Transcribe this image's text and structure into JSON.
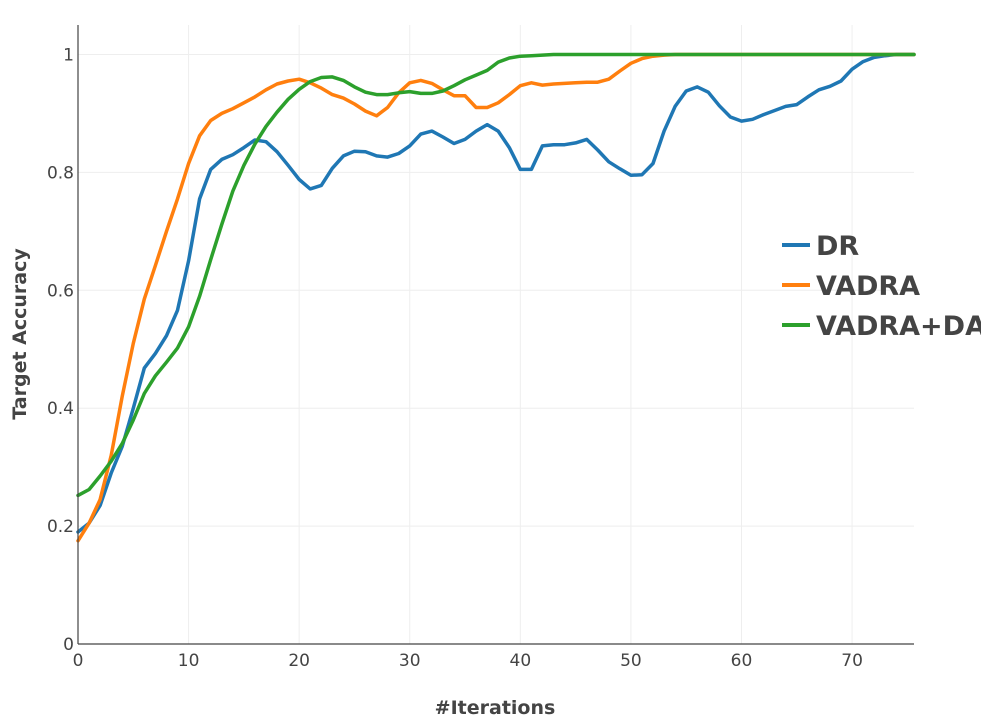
{
  "chart_data": {
    "type": "line",
    "title": "",
    "xlabel": "#Iterations",
    "ylabel": "Target Accuracy",
    "xlim": [
      0,
      75.6
    ],
    "ylim": [
      0,
      1.05
    ],
    "x_ticks": [
      0,
      10,
      20,
      30,
      40,
      50,
      60,
      70
    ],
    "y_ticks": [
      0,
      0.2,
      0.4,
      0.6,
      0.8,
      1
    ],
    "x_tick_labels": [
      "0",
      "10",
      "20",
      "30",
      "40",
      "50",
      "60",
      "70"
    ],
    "y_tick_labels": [
      "0",
      "0.2",
      "0.4",
      "0.6",
      "0.8",
      "1"
    ],
    "grid": true,
    "legend_position": "right",
    "series": [
      {
        "name": "DR",
        "color": "#1f77b4",
        "points": [
          [
            0,
            0.19
          ],
          [
            1,
            0.205
          ],
          [
            2,
            0.235
          ],
          [
            3,
            0.29
          ],
          [
            4,
            0.335
          ],
          [
            5,
            0.4
          ],
          [
            6,
            0.468
          ],
          [
            7,
            0.493
          ],
          [
            8,
            0.523
          ],
          [
            9,
            0.566
          ],
          [
            10,
            0.65
          ],
          [
            11,
            0.755
          ],
          [
            12,
            0.805
          ],
          [
            13,
            0.822
          ],
          [
            14,
            0.83
          ],
          [
            15,
            0.842
          ],
          [
            16,
            0.855
          ],
          [
            17,
            0.852
          ],
          [
            18,
            0.835
          ],
          [
            19,
            0.812
          ],
          [
            20,
            0.788
          ],
          [
            21,
            0.772
          ],
          [
            22,
            0.778
          ],
          [
            23,
            0.807
          ],
          [
            24,
            0.828
          ],
          [
            25,
            0.836
          ],
          [
            26,
            0.835
          ],
          [
            27,
            0.828
          ],
          [
            28,
            0.826
          ],
          [
            29,
            0.832
          ],
          [
            30,
            0.845
          ],
          [
            31,
            0.865
          ],
          [
            32,
            0.87
          ],
          [
            33,
            0.86
          ],
          [
            34,
            0.849
          ],
          [
            35,
            0.856
          ],
          [
            36,
            0.87
          ],
          [
            37,
            0.881
          ],
          [
            38,
            0.87
          ],
          [
            39,
            0.842
          ],
          [
            40,
            0.805
          ],
          [
            41,
            0.805
          ],
          [
            42,
            0.845
          ],
          [
            43,
            0.847
          ],
          [
            44,
            0.847
          ],
          [
            45,
            0.85
          ],
          [
            46,
            0.856
          ],
          [
            47,
            0.838
          ],
          [
            48,
            0.818
          ],
          [
            49,
            0.806
          ],
          [
            50,
            0.795
          ],
          [
            51,
            0.796
          ],
          [
            52,
            0.815
          ],
          [
            53,
            0.87
          ],
          [
            54,
            0.912
          ],
          [
            55,
            0.938
          ],
          [
            56,
            0.945
          ],
          [
            57,
            0.936
          ],
          [
            58,
            0.913
          ],
          [
            59,
            0.894
          ],
          [
            60,
            0.887
          ],
          [
            61,
            0.89
          ],
          [
            62,
            0.898
          ],
          [
            63,
            0.905
          ],
          [
            64,
            0.912
          ],
          [
            65,
            0.915
          ],
          [
            66,
            0.928
          ],
          [
            67,
            0.94
          ],
          [
            68,
            0.946
          ],
          [
            69,
            0.955
          ],
          [
            70,
            0.975
          ],
          [
            71,
            0.988
          ],
          [
            72,
            0.995
          ],
          [
            73,
            0.998
          ],
          [
            74,
            1.0
          ],
          [
            75.6,
            1.0
          ]
        ]
      },
      {
        "name": "VADRA",
        "color": "#ff7f0e",
        "points": [
          [
            0,
            0.175
          ],
          [
            1,
            0.205
          ],
          [
            2,
            0.245
          ],
          [
            3,
            0.32
          ],
          [
            4,
            0.42
          ],
          [
            5,
            0.51
          ],
          [
            6,
            0.585
          ],
          [
            7,
            0.642
          ],
          [
            8,
            0.7
          ],
          [
            9,
            0.755
          ],
          [
            10,
            0.815
          ],
          [
            11,
            0.862
          ],
          [
            12,
            0.888
          ],
          [
            13,
            0.9
          ],
          [
            14,
            0.908
          ],
          [
            15,
            0.918
          ],
          [
            16,
            0.928
          ],
          [
            17,
            0.94
          ],
          [
            18,
            0.95
          ],
          [
            19,
            0.955
          ],
          [
            20,
            0.958
          ],
          [
            21,
            0.952
          ],
          [
            22,
            0.943
          ],
          [
            23,
            0.932
          ],
          [
            24,
            0.926
          ],
          [
            25,
            0.916
          ],
          [
            26,
            0.904
          ],
          [
            27,
            0.896
          ],
          [
            28,
            0.91
          ],
          [
            29,
            0.935
          ],
          [
            30,
            0.952
          ],
          [
            31,
            0.956
          ],
          [
            32,
            0.951
          ],
          [
            33,
            0.94
          ],
          [
            34,
            0.93
          ],
          [
            35,
            0.93
          ],
          [
            36,
            0.91
          ],
          [
            37,
            0.91
          ],
          [
            38,
            0.918
          ],
          [
            39,
            0.932
          ],
          [
            40,
            0.947
          ],
          [
            41,
            0.952
          ],
          [
            42,
            0.948
          ],
          [
            43,
            0.95
          ],
          [
            44,
            0.951
          ],
          [
            45,
            0.952
          ],
          [
            46,
            0.953
          ],
          [
            47,
            0.953
          ],
          [
            48,
            0.958
          ],
          [
            49,
            0.972
          ],
          [
            50,
            0.985
          ],
          [
            51,
            0.993
          ],
          [
            52,
            0.997
          ],
          [
            53,
            0.999
          ],
          [
            54,
            1.0
          ],
          [
            55,
            1.0
          ],
          [
            75.6,
            1.0
          ]
        ]
      },
      {
        "name": "VADRA+DA",
        "color": "#2ca02c",
        "points": [
          [
            0,
            0.252
          ],
          [
            1,
            0.262
          ],
          [
            2,
            0.285
          ],
          [
            3,
            0.31
          ],
          [
            4,
            0.34
          ],
          [
            5,
            0.38
          ],
          [
            6,
            0.425
          ],
          [
            7,
            0.455
          ],
          [
            8,
            0.478
          ],
          [
            9,
            0.502
          ],
          [
            10,
            0.538
          ],
          [
            11,
            0.59
          ],
          [
            12,
            0.652
          ],
          [
            13,
            0.712
          ],
          [
            14,
            0.768
          ],
          [
            15,
            0.812
          ],
          [
            16,
            0.848
          ],
          [
            17,
            0.878
          ],
          [
            18,
            0.902
          ],
          [
            19,
            0.924
          ],
          [
            20,
            0.941
          ],
          [
            21,
            0.954
          ],
          [
            22,
            0.961
          ],
          [
            23,
            0.962
          ],
          [
            24,
            0.956
          ],
          [
            25,
            0.945
          ],
          [
            26,
            0.936
          ],
          [
            27,
            0.932
          ],
          [
            28,
            0.932
          ],
          [
            29,
            0.935
          ],
          [
            30,
            0.937
          ],
          [
            31,
            0.934
          ],
          [
            32,
            0.934
          ],
          [
            33,
            0.938
          ],
          [
            34,
            0.947
          ],
          [
            35,
            0.957
          ],
          [
            36,
            0.965
          ],
          [
            37,
            0.973
          ],
          [
            38,
            0.987
          ],
          [
            39,
            0.994
          ],
          [
            40,
            0.997
          ],
          [
            41,
            0.998
          ],
          [
            42,
            0.999
          ],
          [
            43,
            1.0
          ],
          [
            44,
            1.0
          ],
          [
            75.6,
            1.0
          ]
        ]
      }
    ]
  }
}
